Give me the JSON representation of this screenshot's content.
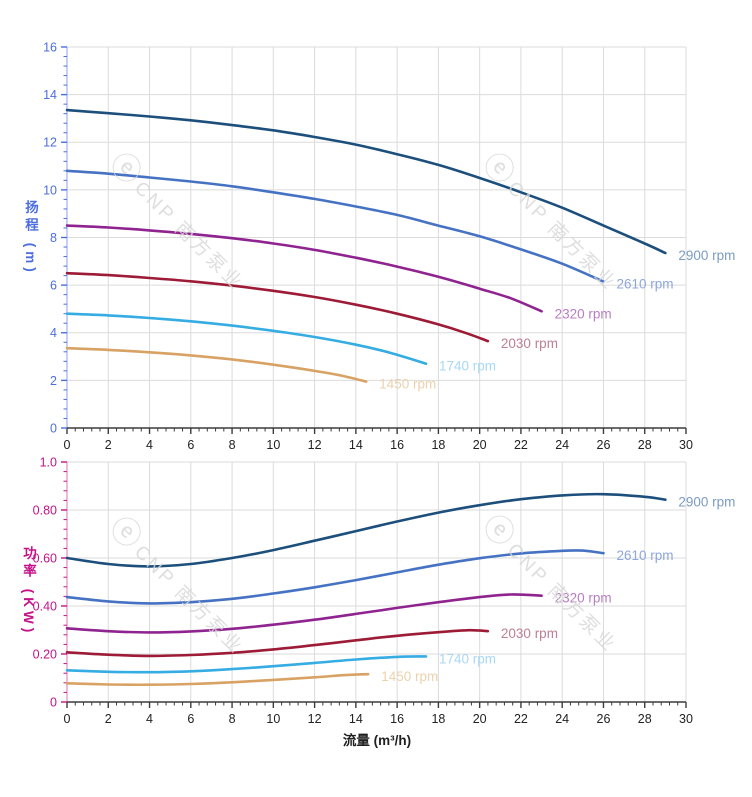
{
  "page": {
    "background": "#ffffff"
  },
  "watermark": {
    "logo": "ⓔ",
    "text": "CNP 南方泵业"
  },
  "chart_data": [
    {
      "type": "line",
      "name": "head-vs-flow-chart",
      "ylabel": "扬程 (m)",
      "xlabel": "",
      "xlim": [
        0,
        30
      ],
      "ylim": [
        0,
        16
      ],
      "x_minor": 0.4,
      "y_minor": 0.4,
      "grid": true,
      "grid_color": "#dbdbdb",
      "yaxis_color": "#4c6ee0",
      "yaxis_line_color": "#9fb0ee",
      "xaxis_color": "#3c3c3c",
      "xlabel_color": "#222222",
      "x_ticks": {
        "values": [
          0,
          2,
          4,
          6,
          8,
          10,
          12,
          14,
          16,
          18,
          20,
          22,
          24,
          26,
          28,
          30
        ],
        "labels": [
          "0",
          "2",
          "4",
          "6",
          "8",
          "10",
          "12",
          "14",
          "16",
          "18",
          "20",
          "22",
          "24",
          "26",
          "28",
          "30"
        ]
      },
      "y_ticks": {
        "values": [
          0,
          2,
          4,
          6,
          8,
          10,
          12,
          14,
          16
        ],
        "labels": [
          "0",
          "2",
          "4",
          "6",
          "8",
          "10",
          "12",
          "14",
          "16"
        ]
      },
      "legend_position": "right-of-curve-ends",
      "series": [
        {
          "name": "2900 rpm",
          "color": "#1d4f7c",
          "label_color": "#7b9cc2",
          "points": [
            [
              0,
              13.35
            ],
            [
              2,
              13.22
            ],
            [
              4,
              13.08
            ],
            [
              6,
              12.92
            ],
            [
              8,
              12.72
            ],
            [
              10,
              12.5
            ],
            [
              12,
              12.22
            ],
            [
              14,
              11.9
            ],
            [
              16,
              11.5
            ],
            [
              18,
              11.05
            ],
            [
              20,
              10.5
            ],
            [
              22,
              9.9
            ],
            [
              24,
              9.25
            ],
            [
              26,
              8.5
            ],
            [
              28,
              7.75
            ],
            [
              29,
              7.35
            ]
          ]
        },
        {
          "name": "2610 rpm",
          "color": "#4672c4",
          "label_color": "#8ea6dc",
          "points": [
            [
              0,
              10.8
            ],
            [
              2,
              10.68
            ],
            [
              4,
              10.52
            ],
            [
              6,
              10.35
            ],
            [
              8,
              10.15
            ],
            [
              10,
              9.9
            ],
            [
              12,
              9.62
            ],
            [
              14,
              9.3
            ],
            [
              16,
              8.95
            ],
            [
              18,
              8.5
            ],
            [
              20,
              8.05
            ],
            [
              22,
              7.5
            ],
            [
              24,
              6.9
            ],
            [
              26,
              6.15
            ]
          ]
        },
        {
          "name": "2320 rpm",
          "color": "#8f2390",
          "label_color": "#b87ec2",
          "points": [
            [
              0,
              8.5
            ],
            [
              2,
              8.42
            ],
            [
              4,
              8.3
            ],
            [
              6,
              8.15
            ],
            [
              8,
              7.97
            ],
            [
              10,
              7.75
            ],
            [
              12,
              7.48
            ],
            [
              14,
              7.15
            ],
            [
              16,
              6.78
            ],
            [
              18,
              6.35
            ],
            [
              20,
              5.85
            ],
            [
              21.5,
              5.45
            ],
            [
              23,
              4.9
            ]
          ]
        },
        {
          "name": "2030 rpm",
          "color": "#9d1b37",
          "label_color": "#bd7f97",
          "points": [
            [
              0,
              6.5
            ],
            [
              2,
              6.42
            ],
            [
              4,
              6.3
            ],
            [
              6,
              6.16
            ],
            [
              8,
              5.98
            ],
            [
              10,
              5.76
            ],
            [
              12,
              5.5
            ],
            [
              14,
              5.18
            ],
            [
              16,
              4.8
            ],
            [
              18,
              4.35
            ],
            [
              19.3,
              4.0
            ],
            [
              20.4,
              3.65
            ]
          ]
        },
        {
          "name": "1740 rpm",
          "color": "#35ace2",
          "label_color": "#a8d8f4",
          "points": [
            [
              0,
              4.8
            ],
            [
              2,
              4.73
            ],
            [
              4,
              4.62
            ],
            [
              6,
              4.48
            ],
            [
              8,
              4.3
            ],
            [
              10,
              4.08
            ],
            [
              12,
              3.82
            ],
            [
              14,
              3.5
            ],
            [
              15.7,
              3.15
            ],
            [
              17.4,
              2.7
            ]
          ]
        },
        {
          "name": "1450 rpm",
          "color": "#d7a263",
          "label_color": "#ecd2ac",
          "points": [
            [
              0,
              3.35
            ],
            [
              2,
              3.28
            ],
            [
              4,
              3.18
            ],
            [
              6,
              3.05
            ],
            [
              8,
              2.88
            ],
            [
              10,
              2.66
            ],
            [
              12,
              2.4
            ],
            [
              13.3,
              2.2
            ],
            [
              14.5,
              1.95
            ]
          ]
        }
      ]
    },
    {
      "type": "line",
      "name": "power-vs-flow-chart",
      "ylabel": "功率 (KW)",
      "xlabel": "流量 (m³/h)",
      "xlim": [
        0,
        30
      ],
      "ylim": [
        0,
        1.0
      ],
      "x_minor": 0.4,
      "y_minor": 0.04,
      "grid": true,
      "grid_color": "#dbdbdb",
      "yaxis_color": "#c4138a",
      "yaxis_line_color": "#e08cc4",
      "xaxis_color": "#3c3c3c",
      "xlabel_color": "#222222",
      "x_ticks": {
        "values": [
          0,
          2,
          4,
          6,
          8,
          10,
          12,
          14,
          16,
          18,
          20,
          22,
          24,
          26,
          28,
          30
        ],
        "labels": [
          "0",
          "2",
          "4",
          "6",
          "8",
          "10",
          "12",
          "14",
          "16",
          "18",
          "20",
          "22",
          "24",
          "26",
          "28",
          "30"
        ]
      },
      "y_ticks": {
        "values": [
          0,
          0.2,
          0.4,
          0.6,
          0.8,
          1
        ],
        "labels": [
          "0",
          "0.20",
          "0.40",
          "0.60",
          "0.80",
          "1.0"
        ]
      },
      "legend_position": "right-of-curve-ends",
      "series": [
        {
          "name": "2900 rpm",
          "color": "#1d4f7c",
          "label_color": "#7b9cc2",
          "points": [
            [
              0,
              0.6
            ],
            [
              2,
              0.575
            ],
            [
              4,
              0.565
            ],
            [
              6,
              0.575
            ],
            [
              8,
              0.6
            ],
            [
              10,
              0.633
            ],
            [
              12,
              0.672
            ],
            [
              14,
              0.712
            ],
            [
              16,
              0.752
            ],
            [
              18,
              0.789
            ],
            [
              20,
              0.82
            ],
            [
              22,
              0.845
            ],
            [
              24,
              0.861
            ],
            [
              26,
              0.866
            ],
            [
              28,
              0.855
            ],
            [
              29,
              0.843
            ]
          ]
        },
        {
          "name": "2610 rpm",
          "color": "#4672c4",
          "label_color": "#8ea6dc",
          "points": [
            [
              0,
              0.437
            ],
            [
              2,
              0.419
            ],
            [
              4,
              0.411
            ],
            [
              6,
              0.416
            ],
            [
              8,
              0.43
            ],
            [
              10,
              0.452
            ],
            [
              12,
              0.478
            ],
            [
              14,
              0.508
            ],
            [
              16,
              0.54
            ],
            [
              18,
              0.572
            ],
            [
              20,
              0.599
            ],
            [
              22,
              0.619
            ],
            [
              24,
              0.63
            ],
            [
              25,
              0.631
            ],
            [
              26,
              0.62
            ]
          ]
        },
        {
          "name": "2320 rpm",
          "color": "#8f2390",
          "label_color": "#b87ec2",
          "points": [
            [
              0,
              0.307
            ],
            [
              2,
              0.295
            ],
            [
              4,
              0.29
            ],
            [
              6,
              0.294
            ],
            [
              8,
              0.305
            ],
            [
              10,
              0.322
            ],
            [
              12,
              0.343
            ],
            [
              14,
              0.367
            ],
            [
              16,
              0.392
            ],
            [
              18,
              0.416
            ],
            [
              20,
              0.437
            ],
            [
              21.5,
              0.448
            ],
            [
              23,
              0.443
            ]
          ]
        },
        {
          "name": "2030 rpm",
          "color": "#9d1b37",
          "label_color": "#bd7f97",
          "points": [
            [
              0,
              0.207
            ],
            [
              2,
              0.197
            ],
            [
              4,
              0.192
            ],
            [
              6,
              0.196
            ],
            [
              8,
              0.205
            ],
            [
              10,
              0.219
            ],
            [
              12,
              0.237
            ],
            [
              14,
              0.257
            ],
            [
              16,
              0.276
            ],
            [
              18,
              0.291
            ],
            [
              19.5,
              0.299
            ],
            [
              20.4,
              0.295
            ]
          ]
        },
        {
          "name": "1740 rpm",
          "color": "#35ace2",
          "label_color": "#a8d8f4",
          "points": [
            [
              0,
              0.132
            ],
            [
              2,
              0.126
            ],
            [
              4,
              0.124
            ],
            [
              6,
              0.128
            ],
            [
              8,
              0.137
            ],
            [
              10,
              0.149
            ],
            [
              12,
              0.163
            ],
            [
              14,
              0.177
            ],
            [
              16,
              0.188
            ],
            [
              17.4,
              0.19
            ]
          ]
        },
        {
          "name": "1450 rpm",
          "color": "#d7a263",
          "label_color": "#ecd2ac",
          "points": [
            [
              0,
              0.078
            ],
            [
              2,
              0.073
            ],
            [
              4,
              0.072
            ],
            [
              6,
              0.075
            ],
            [
              8,
              0.082
            ],
            [
              10,
              0.092
            ],
            [
              12,
              0.103
            ],
            [
              13.5,
              0.112
            ],
            [
              14.6,
              0.116
            ]
          ]
        }
      ]
    }
  ]
}
